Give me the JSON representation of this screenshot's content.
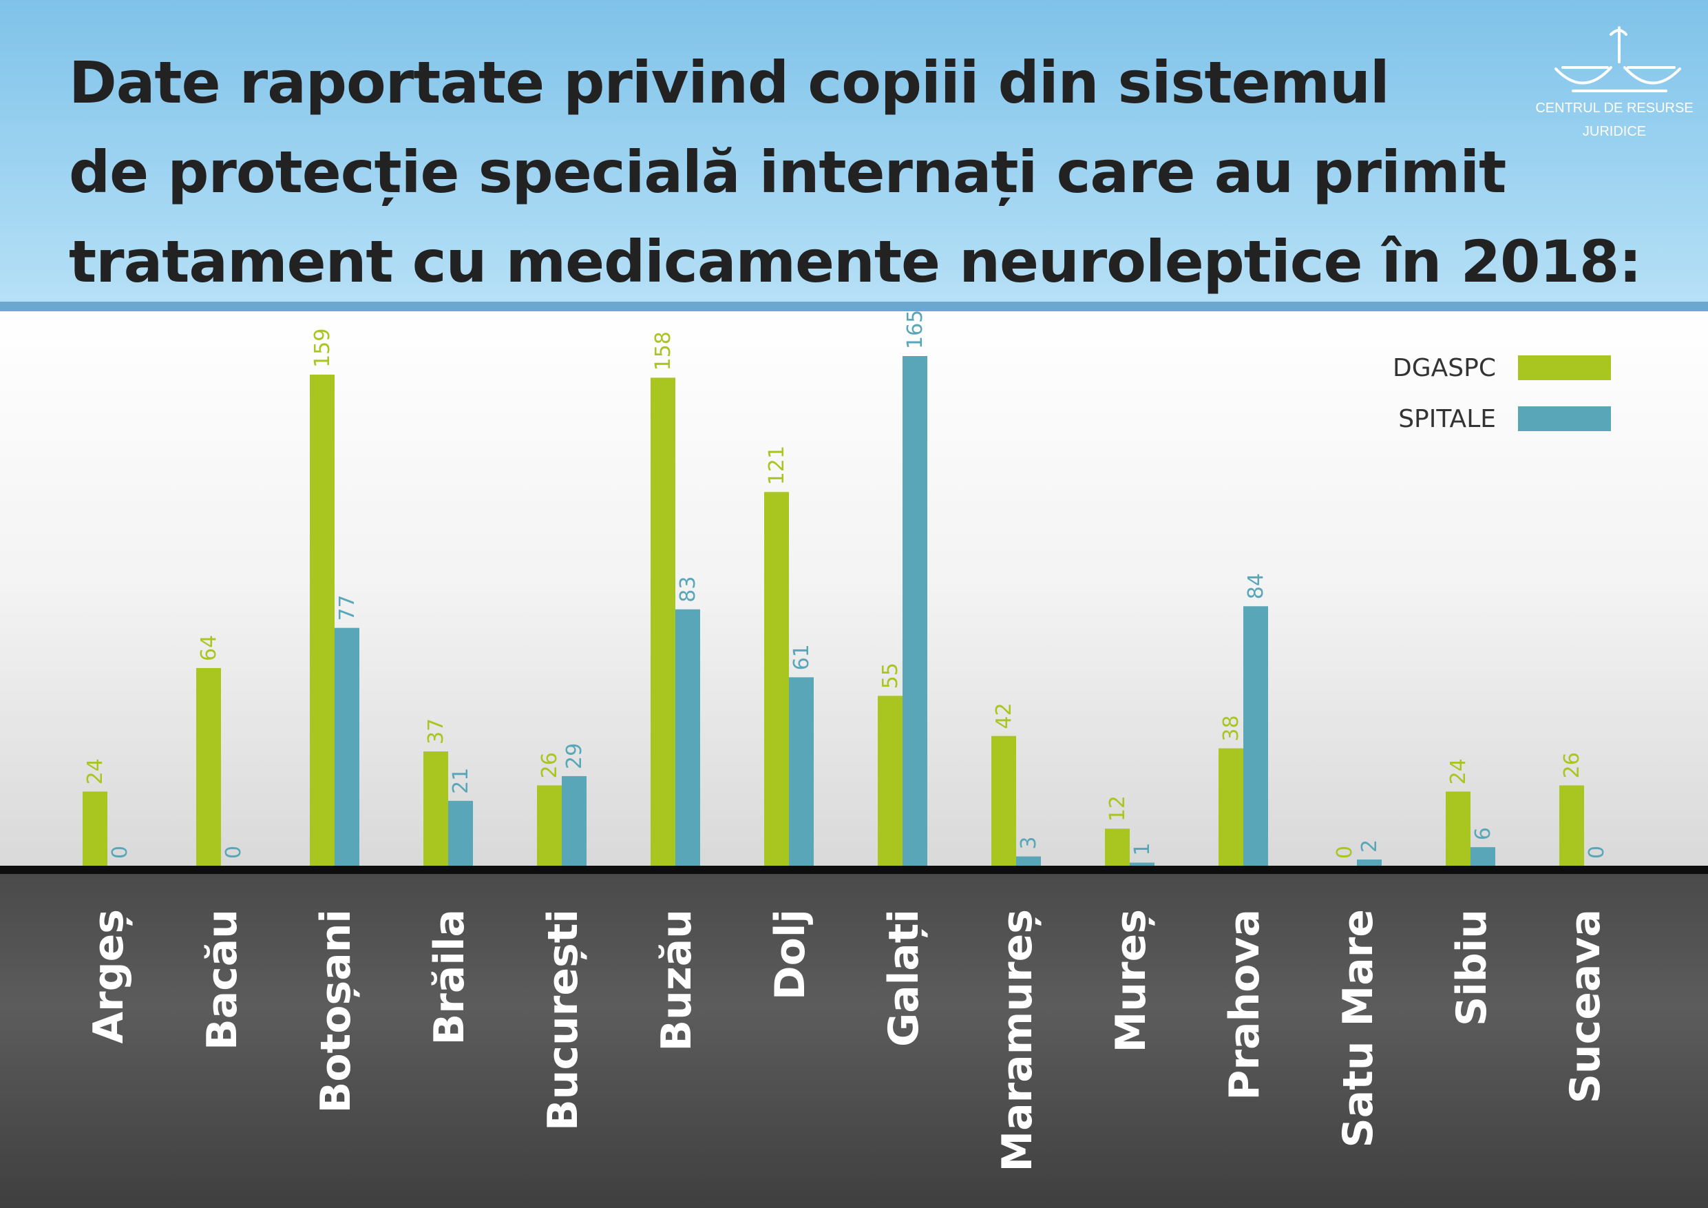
{
  "header": {
    "title_lines": [
      "Date raportate privind copiii din sistemul",
      "de protecție specială internați care au primit",
      "tratament cu medicamente neuroleptice în 2018:"
    ],
    "logo_text_lines": [
      "CENTRUL DE RESURSE",
      "JURIDICE"
    ]
  },
  "colors": {
    "dgaspc": "#a8c520",
    "spitale": "#58a6b7",
    "header_bg": "#9dd3f1",
    "title_text": "#222222",
    "footer_bg": "#555555"
  },
  "icons": {
    "logo": "scales-of-justice-logo"
  },
  "chart_data": {
    "type": "bar",
    "orientation": "vertical",
    "grouped": true,
    "title": "Date raportate privind copiii din sistemul de protecție specială internați care au primit tratament cu medicamente neuroleptice în 2018:",
    "xlabel": "",
    "ylabel": "",
    "ylim": [
      0,
      165
    ],
    "grid": false,
    "legend_position": "top-right",
    "categories": [
      "Argeș",
      "Bacău",
      "Botoșani",
      "Brăila",
      "București",
      "Buzău",
      "Dolj",
      "Galați",
      "Maramureș",
      "Mureș",
      "Prahova",
      "Satu Mare",
      "Sibiu",
      "Suceava"
    ],
    "series": [
      {
        "name": "DGASPC",
        "color": "#a8c520",
        "values": [
          24,
          64,
          159,
          37,
          26,
          158,
          121,
          55,
          42,
          12,
          38,
          0,
          24,
          26
        ]
      },
      {
        "name": "SPITALE",
        "color": "#58a6b7",
        "values": [
          0,
          0,
          77,
          21,
          29,
          83,
          61,
          165,
          3,
          1,
          84,
          2,
          6,
          0
        ]
      }
    ]
  }
}
